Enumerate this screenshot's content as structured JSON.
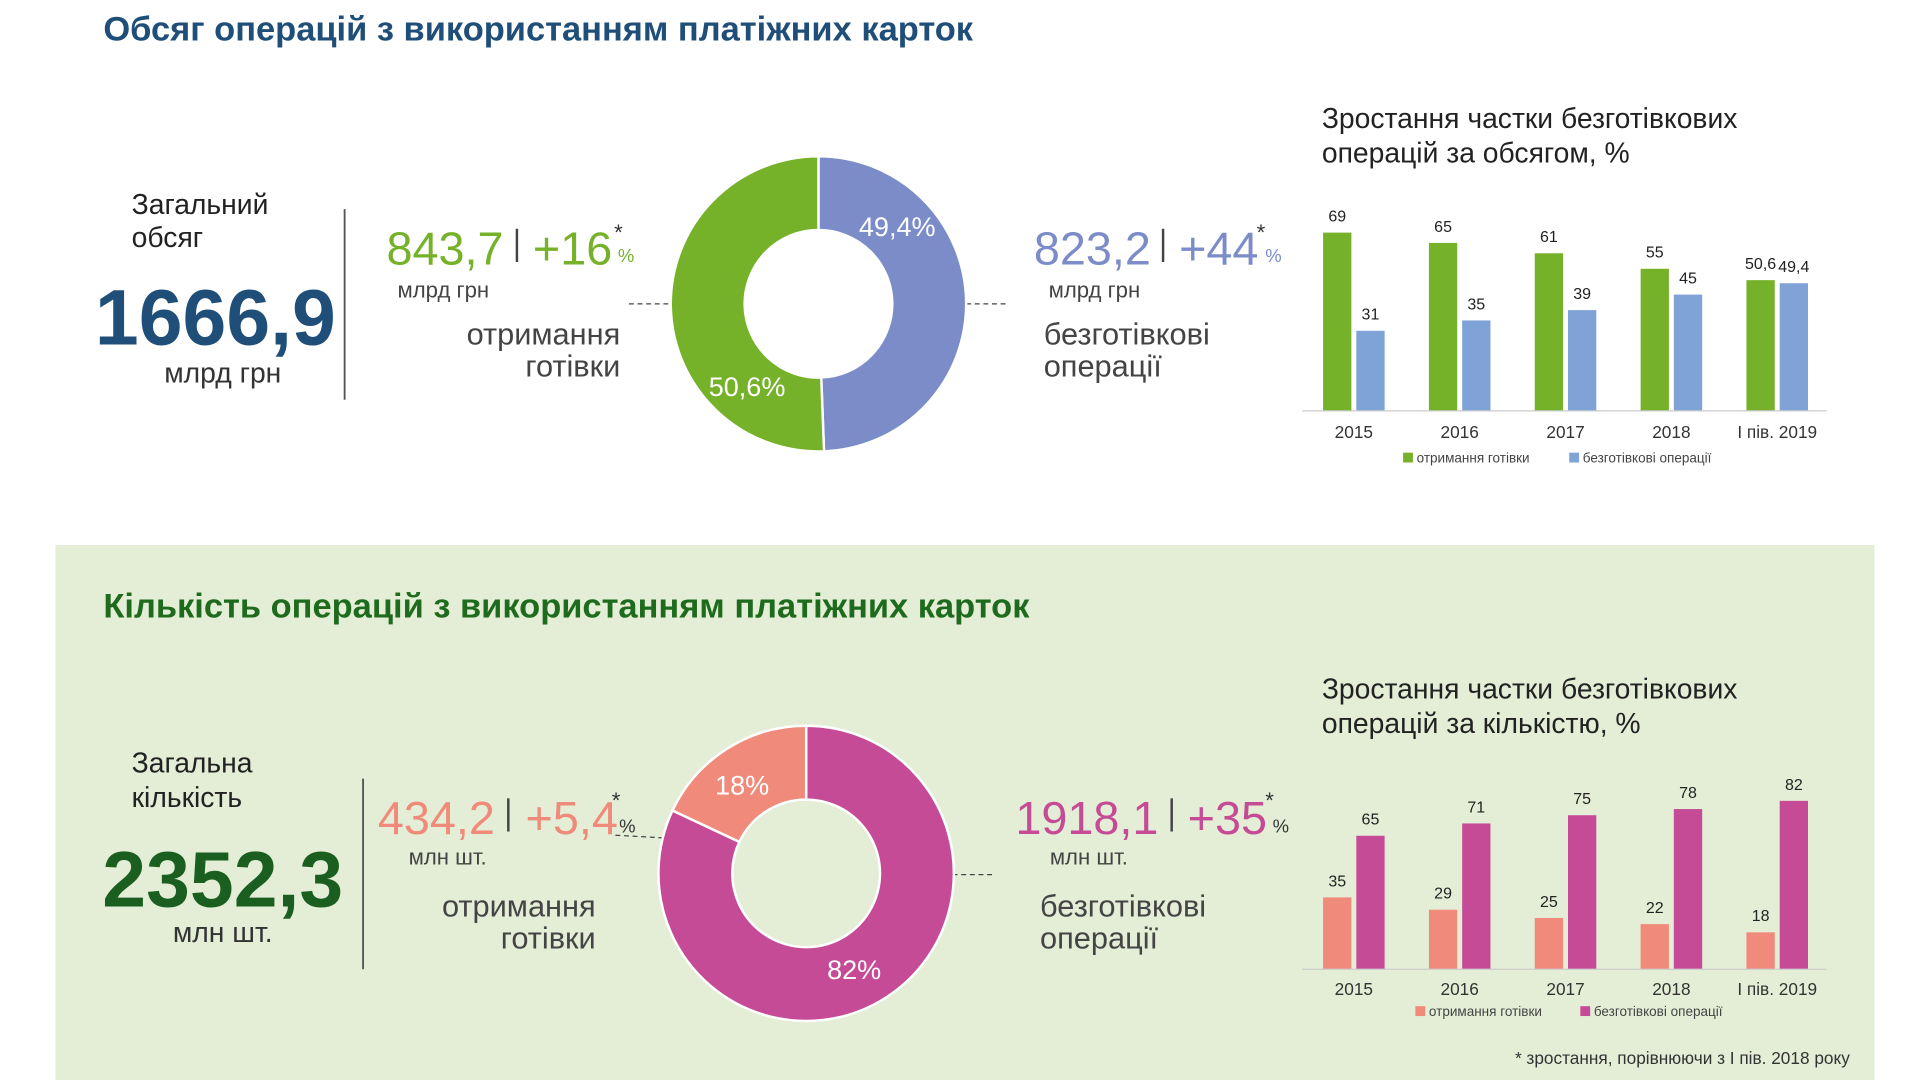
{
  "sections": [
    {
      "title": "Обсяг операцій з використанням платіжних карток",
      "total": {
        "label": [
          "Загальний",
          "обсяг"
        ],
        "value": "1666,9",
        "unit": "млрд грн"
      },
      "cash": {
        "value": "843,7",
        "growth": "+16",
        "note": "*",
        "growth_unit": "%",
        "unit": "млрд грн",
        "label": [
          "отримання",
          "готівки"
        ]
      },
      "cashless": {
        "value": "823,2",
        "growth": "+44",
        "note": "*",
        "growth_unit": "%",
        "unit": "млрд грн",
        "label": [
          "безготівкові",
          "операції"
        ]
      }
    },
    {
      "title": "Кількість операцій з використанням платіжних карток",
      "total": {
        "label": [
          "Загальна",
          "кількість"
        ],
        "value": "2352,3",
        "unit": "млн шт."
      },
      "cash": {
        "value": "434,2",
        "growth": "+5,4",
        "note": "*",
        "growth_unit": "%",
        "unit": "млн шт.",
        "label": [
          "отримання",
          "готівки"
        ]
      },
      "cashless": {
        "value": "1918,1",
        "growth": "+35",
        "note": "*",
        "growth_unit": "%",
        "unit": "млн шт.",
        "label": [
          "безготівкові",
          "операції"
        ]
      }
    }
  ],
  "chart_data": [
    {
      "type": "donut",
      "values": [
        49.4,
        50.6
      ],
      "value_labels": [
        "49,4%",
        "50,6%"
      ],
      "colors": [
        "#7b8cc9",
        "#76b12a"
      ]
    },
    {
      "type": "bar",
      "title": [
        "Зростання частки безготівкових",
        "операцій за обсягом, %"
      ],
      "categories": [
        "2015",
        "2016",
        "2017",
        "2018",
        "І пів. 2019"
      ],
      "ylim": [
        0,
        100
      ],
      "series": [
        {
          "name": "отримання готівки",
          "color": "#76b12a",
          "values": [
            69,
            65,
            61,
            55,
            50.6
          ],
          "value_labels": [
            "69",
            "65",
            "61",
            "55",
            "50,6"
          ]
        },
        {
          "name": "безготівкові операції",
          "color": "#7fa3d6",
          "values": [
            31,
            35,
            39,
            45,
            49.4
          ],
          "value_labels": [
            "31",
            "35",
            "39",
            "45",
            "49,4"
          ]
        }
      ]
    },
    {
      "type": "donut",
      "values": [
        82,
        18
      ],
      "value_labels": [
        "82%",
        "18%"
      ],
      "colors": [
        "#c64b96",
        "#f08a7a"
      ]
    },
    {
      "type": "bar",
      "title": [
        "Зростання частки безготівкових",
        "операцій за кількістю, %"
      ],
      "categories": [
        "2015",
        "2016",
        "2017",
        "2018",
        "І пів. 2019"
      ],
      "ylim": [
        0,
        100
      ],
      "series": [
        {
          "name": "отримання готівки",
          "color": "#f08a7a",
          "values": [
            35,
            29,
            25,
            22,
            18
          ]
        },
        {
          "name": "безготівкові операції",
          "color": "#c64b96",
          "values": [
            65,
            71,
            75,
            78,
            82
          ]
        }
      ]
    }
  ],
  "footnote": "* зростання, порівнюючи з І пів. 2018 року"
}
